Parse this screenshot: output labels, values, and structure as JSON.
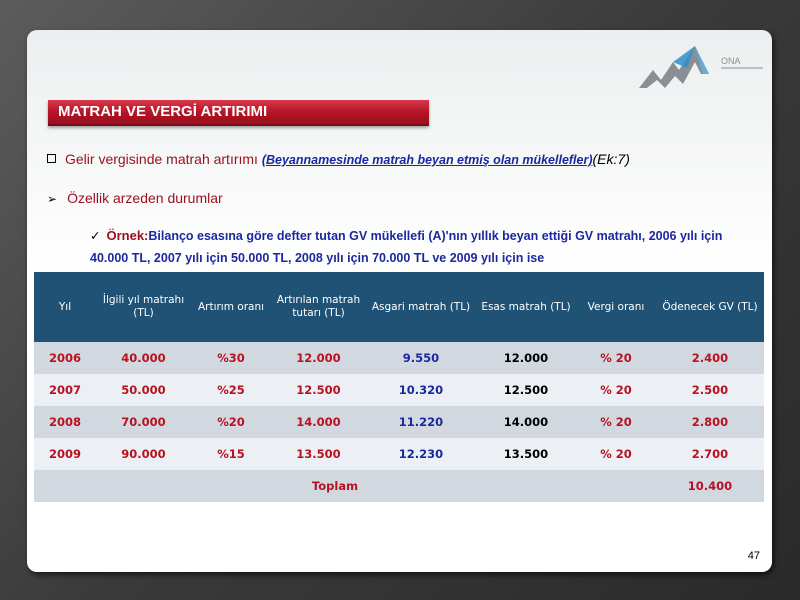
{
  "slide": {
    "title": "MATRAH VE VERGİ ARTIRIMI",
    "logo_text": "ONA",
    "bullet1": {
      "text": "Gelir vergisinde matrah artırımı ",
      "subtext": "(Beyannamesinde matrah beyan etmiş olan mükellefler)",
      "ref": "(Ek:7)"
    },
    "bullet2": {
      "text": "Özellik arzeden durumlar"
    },
    "bullet3": {
      "label": "Örnek:",
      "text": "Bilanço esasına göre defter tutan GV mükellefi (A)'nın yıllık beyan ettiği GV matrahı, 2006 yılı için 40.000 TL, 2007 yılı için 50.000 TL, 2008 yılı için 70.000 TL ve 2009 yılı için ise"
    },
    "page_number": "47"
  },
  "table": {
    "headers": [
      "Yıl",
      "İlgili yıl matrahı (TL)",
      "Artırım oranı",
      "Artırılan matrah tutarı (TL)",
      "Asgari matrah (TL)",
      "Esas matrah (TL)",
      "Vergi oranı",
      "Ödenecek GV (TL)"
    ],
    "rows": [
      [
        "2006",
        "40.000",
        "%30",
        "12.000",
        "9.550",
        "12.000",
        "% 20",
        "2.400"
      ],
      [
        "2007",
        "50.000",
        "%25",
        "12.500",
        "10.320",
        "12.500",
        "% 20",
        "2.500"
      ],
      [
        "2008",
        "70.000",
        "%20",
        "14.000",
        "11.220",
        "14.000",
        "% 20",
        "2.800"
      ],
      [
        "2009",
        "90.000",
        "%15",
        "13.500",
        "12.230",
        "13.500",
        "% 20",
        "2.700"
      ]
    ],
    "total_label": "Toplam",
    "total_value": "10.400"
  },
  "colors": {
    "accent_red": "#b81122",
    "header_blue": "#1f5275",
    "text_blue": "#1b28a0"
  }
}
